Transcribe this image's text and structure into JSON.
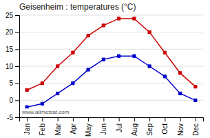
{
  "chart_data": {
    "type": "line",
    "title": "Geisenheim : temperatures (°C)",
    "categories": [
      "Jan",
      "Feb",
      "Mar",
      "Apr",
      "May",
      "Jun",
      "Jul",
      "Aug",
      "Sep",
      "Oct",
      "Nov",
      "Dec"
    ],
    "series": [
      {
        "color": "#cc0000",
        "marker": "square",
        "values": [
          3,
          5,
          10,
          14,
          19,
          22,
          24,
          24,
          20,
          14,
          8,
          4
        ]
      },
      {
        "color": "#0000cc",
        "marker": "square",
        "values": [
          -2,
          -1,
          2,
          5,
          9,
          12,
          13,
          13,
          10,
          7,
          2,
          0
        ]
      }
    ],
    "ylim": [
      -5,
      25
    ],
    "yticks": [
      -5,
      0,
      5,
      10,
      15,
      20,
      25
    ],
    "grid": true,
    "annotation": "www.allmetsat.com"
  }
}
